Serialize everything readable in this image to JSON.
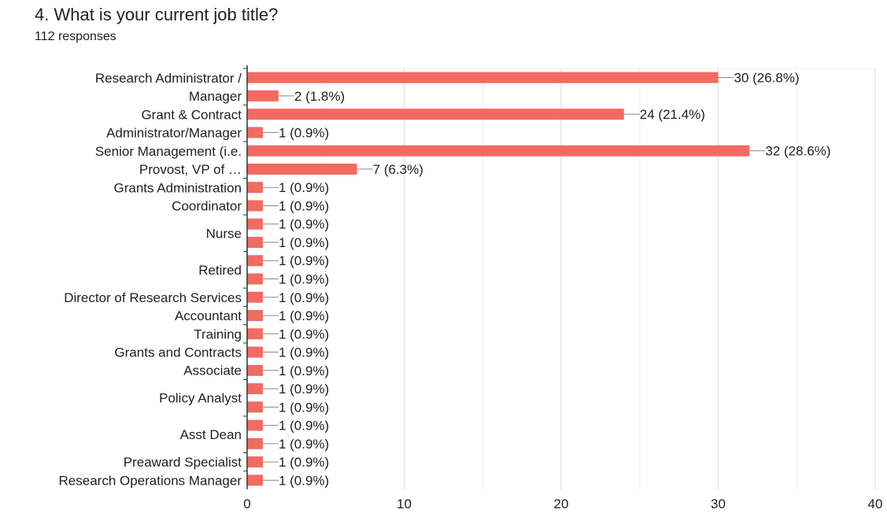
{
  "header": {
    "title": "4. What is your current job title?",
    "responses": "112 responses"
  },
  "colors": {
    "bar": "#f26b61",
    "grid": "#e6e6e6",
    "axis": "#333333",
    "text": "#202124"
  },
  "chart_data": {
    "type": "bar",
    "orientation": "horizontal",
    "title": "4. What is your current job title?",
    "subtitle": "112 responses",
    "xlim": [
      0,
      40
    ],
    "xticks": [
      0,
      10,
      20,
      30,
      40
    ],
    "grid": true,
    "values": [
      30,
      2,
      24,
      1,
      32,
      7,
      1,
      1,
      1,
      1,
      1,
      1,
      1,
      1,
      1,
      1,
      1,
      1,
      1,
      1,
      1,
      1,
      1
    ],
    "data_labels": [
      "30 (26.8%)",
      "2 (1.8%)",
      "24 (21.4%)",
      "1 (0.9%)",
      "32 (28.6%)",
      "7 (6.3%)",
      "1 (0.9%)",
      "1 (0.9%)",
      "1 (0.9%)",
      "1 (0.9%)",
      "1 (0.9%)",
      "1 (0.9%)",
      "1 (0.9%)",
      "1 (0.9%)",
      "1 (0.9%)",
      "1 (0.9%)",
      "1 (0.9%)",
      "1 (0.9%)",
      "1 (0.9%)",
      "1 (0.9%)",
      "1 (0.9%)",
      "1 (0.9%)",
      "1 (0.9%)"
    ],
    "category_labels": [
      {
        "lines": [
          "Research Administrator /",
          "Manager"
        ],
        "start": 0,
        "span": 2
      },
      {
        "lines": [
          "Grant & Contract",
          "Administrator/Manager"
        ],
        "start": 2,
        "span": 2
      },
      {
        "lines": [
          "Senior Management (i.e.",
          "Provost, VP of …"
        ],
        "start": 4,
        "span": 2
      },
      {
        "lines": [
          "Grants Administration",
          "Coordinator"
        ],
        "start": 6,
        "span": 2
      },
      {
        "lines": [
          "Nurse"
        ],
        "start": 8,
        "span": 2
      },
      {
        "lines": [
          "Retired"
        ],
        "start": 10,
        "span": 2
      },
      {
        "lines": [
          "Director of Research Services"
        ],
        "start": 12,
        "span": 1
      },
      {
        "lines": [
          "Accountant"
        ],
        "start": 13,
        "span": 1
      },
      {
        "lines": [
          "Training"
        ],
        "start": 14,
        "span": 1
      },
      {
        "lines": [
          "Grants and Contracts",
          "Associate"
        ],
        "start": 15,
        "span": 2
      },
      {
        "lines": [
          "Policy Analyst"
        ],
        "start": 17,
        "span": 2
      },
      {
        "lines": [
          "Asst Dean"
        ],
        "start": 19,
        "span": 2
      },
      {
        "lines": [
          "Preaward Specialist"
        ],
        "start": 21,
        "span": 1
      },
      {
        "lines": [
          "Research Operations Manager"
        ],
        "start": 22,
        "span": 1
      }
    ]
  }
}
